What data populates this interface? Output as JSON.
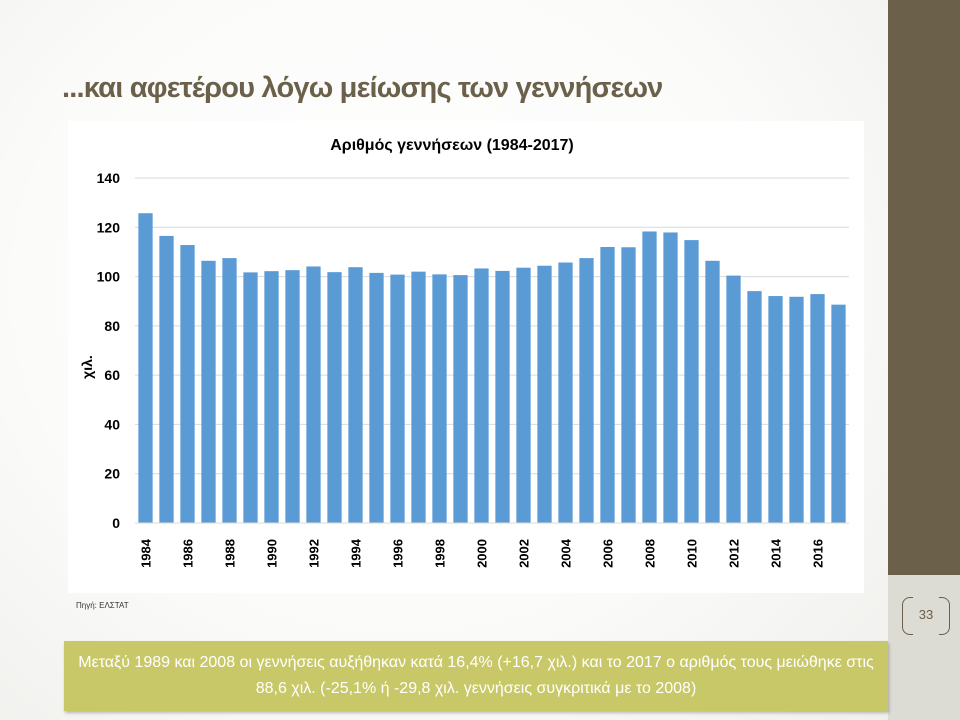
{
  "slide": {
    "title": "...και αφετέρου λόγω μείωσης των γεννήσεων",
    "page_number": "33",
    "source": "Πηγή: ΕΛΣΤΑΤ",
    "note": "Μεταξύ 1989 και 2008 οι γεννήσεις αυξήθηκαν κατά 16,4% (+16,7 χιλ.) και το 2017 ο αριθμός τους μειώθηκε στις 88,6 χιλ. (-25,1% ή -29,8 χιλ. γεννήσεις συγκριτικά με το 2008)"
  },
  "colors": {
    "bar": "#5b9bd5",
    "accent": "#6b604a",
    "callout": "#c9c869"
  },
  "chart_data": {
    "type": "bar",
    "title": "Αριθμός γεννήσεων  (1984-2017)",
    "xlabel": "",
    "ylabel": "χιλ.",
    "ylim": [
      0,
      140
    ],
    "yticks": [
      0,
      20,
      40,
      60,
      80,
      100,
      120,
      140
    ],
    "grid": true,
    "legend": "none",
    "categories": [
      "1984",
      "1985",
      "1986",
      "1987",
      "1988",
      "1989",
      "1990",
      "1991",
      "1992",
      "1993",
      "1994",
      "1995",
      "1996",
      "1997",
      "1998",
      "1999",
      "2000",
      "2001",
      "2002",
      "2003",
      "2004",
      "2005",
      "2006",
      "2007",
      "2008",
      "2009",
      "2010",
      "2011",
      "2012",
      "2013",
      "2014",
      "2015",
      "2016",
      "2017"
    ],
    "xtick_labels": [
      "1984",
      "1986",
      "1988",
      "1990",
      "1992",
      "1994",
      "1996",
      "1998",
      "2000",
      "2002",
      "2004",
      "2006",
      "2008",
      "2010",
      "2012",
      "2014",
      "2016"
    ],
    "values": [
      125.7,
      116.5,
      112.8,
      106.4,
      107.5,
      101.7,
      102.2,
      102.6,
      104.1,
      101.8,
      103.8,
      101.5,
      100.8,
      102.0,
      100.9,
      100.6,
      103.3,
      102.3,
      103.6,
      104.4,
      105.7,
      107.5,
      112.0,
      111.9,
      118.3,
      117.9,
      114.8,
      106.4,
      100.4,
      94.1,
      92.1,
      91.8,
      92.9,
      88.6
    ]
  }
}
